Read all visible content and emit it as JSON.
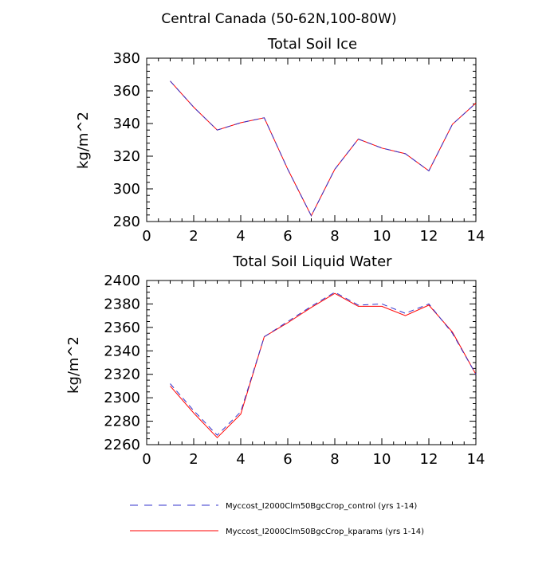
{
  "figure": {
    "title": "Central Canada (50-62N,100-80W)"
  },
  "colors": {
    "control": "#3333cc",
    "kparams": "#ff0000"
  },
  "legend": {
    "items": [
      {
        "label": "Myccost_I2000Clm50BgcCrop_control (yrs 1-14)",
        "style": "dashed",
        "color_key": "control"
      },
      {
        "label": "Myccost_I2000Clm50BgcCrop_kparams (yrs 1-14)",
        "style": "solid",
        "color_key": "kparams"
      }
    ]
  },
  "chart_data": [
    {
      "type": "line",
      "title": "Total Soil Ice",
      "xlabel": "",
      "ylabel": "kg/m^2",
      "xlim": [
        0,
        14
      ],
      "ylim": [
        280,
        380
      ],
      "xticks": [
        0,
        2,
        4,
        6,
        8,
        10,
        12,
        14
      ],
      "yticks": [
        280,
        300,
        320,
        340,
        360,
        380
      ],
      "x_minor_step": 0.5,
      "y_minor_step": 4,
      "x": [
        1,
        2,
        3,
        4,
        5,
        6,
        7,
        8,
        9,
        10,
        11,
        12,
        13,
        14
      ],
      "series": [
        {
          "name": "Myccost_I2000Clm50BgcCrop_control (yrs 1-14)",
          "color_key": "control",
          "style": "dashed",
          "values": [
            366,
            350,
            336,
            340.5,
            343.5,
            312,
            283.5,
            312,
            330.5,
            325,
            321.5,
            311,
            339.5,
            352.5
          ]
        },
        {
          "name": "Myccost_I2000Clm50BgcCrop_kparams (yrs 1-14)",
          "color_key": "kparams",
          "style": "solid",
          "values": [
            366,
            350,
            336,
            340.5,
            343.5,
            312,
            283.5,
            312,
            330.5,
            325,
            321.5,
            311,
            339.5,
            352.5
          ]
        }
      ]
    },
    {
      "type": "line",
      "title": "Total Soil Liquid Water",
      "xlabel": "",
      "ylabel": "kg/m^2",
      "xlim": [
        0,
        14
      ],
      "ylim": [
        2260,
        2400
      ],
      "xticks": [
        0,
        2,
        4,
        6,
        8,
        10,
        12,
        14
      ],
      "yticks": [
        2260,
        2280,
        2300,
        2320,
        2340,
        2360,
        2380,
        2400
      ],
      "x_minor_step": 0.5,
      "y_minor_step": 5,
      "x": [
        1,
        2,
        3,
        4,
        5,
        6,
        7,
        8,
        9,
        10,
        11,
        12,
        13,
        14
      ],
      "series": [
        {
          "name": "Myccost_I2000Clm50BgcCrop_control (yrs 1-14)",
          "color_key": "control",
          "style": "dashed",
          "values": [
            2312,
            2289,
            2268,
            2288,
            2352,
            2365,
            2378,
            2390,
            2379,
            2380,
            2372,
            2380,
            2355,
            2320
          ]
        },
        {
          "name": "Myccost_I2000Clm50BgcCrop_kparams (yrs 1-14)",
          "color_key": "kparams",
          "style": "solid",
          "values": [
            2310,
            2287,
            2266,
            2286,
            2352,
            2364,
            2377,
            2389,
            2378,
            2378,
            2370,
            2379,
            2356,
            2320
          ]
        }
      ]
    }
  ]
}
